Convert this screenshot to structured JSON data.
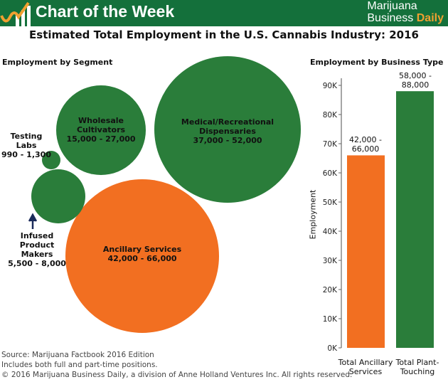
{
  "header": {
    "title": "Chart of the Week",
    "brand_line1": "Marijuana",
    "brand_business": "Business",
    "brand_daily": "Daily"
  },
  "title": "Estimated Total Employment in the U.S. Cannabis Industry: 2016",
  "colors": {
    "green": "#2a7d3a",
    "orange": "#f26f21",
    "header": "#14703b"
  },
  "chart_data": [
    {
      "type": "bubble",
      "title": "Employment by Segment",
      "items": [
        {
          "name": "Wholesale Cultivators",
          "range": "15,000 - 27,000",
          "low": 15000,
          "high": 27000,
          "color": "green"
        },
        {
          "name": "Medical/Recreational Dispensaries",
          "range": "37,000 - 52,000",
          "low": 37000,
          "high": 52000,
          "color": "green"
        },
        {
          "name": "Ancillary Services",
          "range": "42,000 - 66,000",
          "low": 42000,
          "high": 66000,
          "color": "orange"
        },
        {
          "name": "Infused Product Makers",
          "range": "5,500 - 8,000",
          "low": 5500,
          "high": 8000,
          "color": "green"
        },
        {
          "name": "Testing Labs",
          "range": "990 - 1,300",
          "low": 990,
          "high": 1300,
          "color": "green"
        }
      ]
    },
    {
      "type": "bar",
      "title": "Employment by Business Type",
      "ylabel": "Employment",
      "ylim": [
        0,
        90000
      ],
      "yticks": [
        "0K",
        "10K",
        "20K",
        "30K",
        "40K",
        "50K",
        "60K",
        "70K",
        "80K",
        "90K"
      ],
      "categories": [
        "Total Ancillary Services",
        "Total Plant-Touching"
      ],
      "values": [
        66000,
        88000
      ],
      "labels": [
        "42,000 - 66,000",
        "58,000 - 88,000"
      ],
      "colors": [
        "#f26f21",
        "#2a7d3a"
      ]
    }
  ],
  "footer": {
    "source": "Source: Marijuana Factbook 2016 Edition",
    "note": "Includes both full and part-time positions.",
    "copyright": "© 2016 Marijuana Business Daily, a division of Anne Holland Ventures Inc. All rights reserved."
  }
}
